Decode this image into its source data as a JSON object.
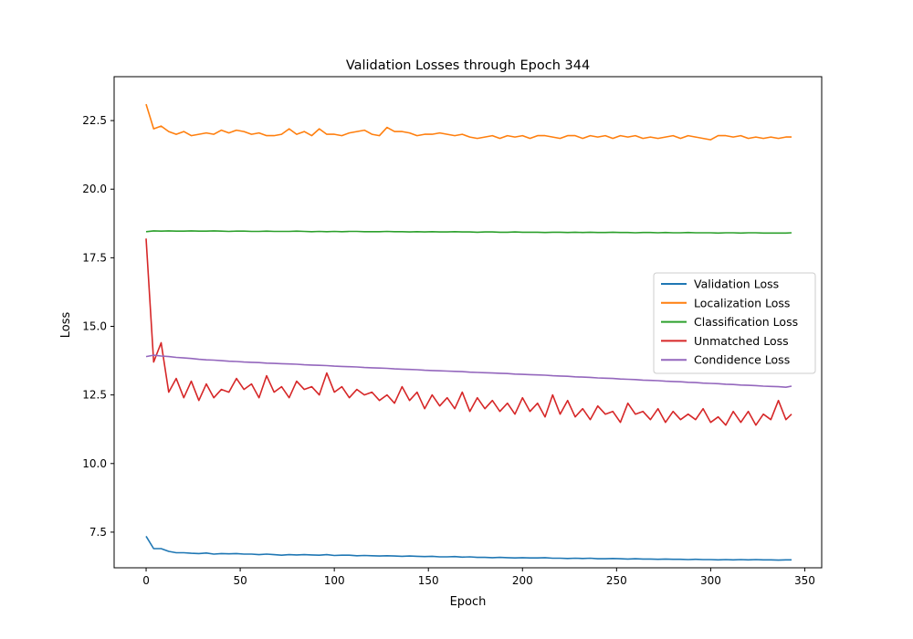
{
  "chart_data": {
    "type": "line",
    "title": "Validation Losses through Epoch 344",
    "xlabel": "Epoch",
    "ylabel": "Loss",
    "xlim": [
      -17,
      359
    ],
    "ylim": [
      6.2,
      24.1
    ],
    "xticks": [
      0,
      50,
      100,
      150,
      200,
      250,
      300,
      350
    ],
    "xtick_labels": [
      "0",
      "50",
      "100",
      "150",
      "200",
      "250",
      "300",
      "350"
    ],
    "yticks": [
      7.5,
      10.0,
      12.5,
      15.0,
      17.5,
      20.0,
      22.5
    ],
    "ytick_labels": [
      "7.5",
      "10.0",
      "12.5",
      "15.0",
      "17.5",
      "20.0",
      "22.5"
    ],
    "grid": false,
    "legend_position": "center-right",
    "x": [
      0,
      4,
      8,
      12,
      16,
      20,
      24,
      28,
      32,
      36,
      40,
      44,
      48,
      52,
      56,
      60,
      64,
      68,
      72,
      76,
      80,
      84,
      88,
      92,
      96,
      100,
      104,
      108,
      112,
      116,
      120,
      124,
      128,
      132,
      136,
      140,
      144,
      148,
      152,
      156,
      160,
      164,
      168,
      172,
      176,
      180,
      184,
      188,
      192,
      196,
      200,
      204,
      208,
      212,
      216,
      220,
      224,
      228,
      232,
      236,
      240,
      244,
      248,
      252,
      256,
      260,
      264,
      268,
      272,
      276,
      280,
      284,
      288,
      292,
      296,
      300,
      304,
      308,
      312,
      316,
      320,
      324,
      328,
      332,
      336,
      340,
      343
    ],
    "series": [
      {
        "name": "Validation Loss",
        "color": "#1f77b4",
        "values": [
          7.35,
          6.9,
          6.9,
          6.8,
          6.75,
          6.75,
          6.73,
          6.72,
          6.74,
          6.7,
          6.72,
          6.71,
          6.72,
          6.7,
          6.7,
          6.68,
          6.7,
          6.68,
          6.66,
          6.68,
          6.67,
          6.68,
          6.67,
          6.66,
          6.68,
          6.65,
          6.66,
          6.66,
          6.64,
          6.65,
          6.64,
          6.63,
          6.64,
          6.63,
          6.62,
          6.63,
          6.62,
          6.61,
          6.62,
          6.6,
          6.6,
          6.61,
          6.59,
          6.6,
          6.58,
          6.58,
          6.57,
          6.58,
          6.57,
          6.56,
          6.57,
          6.56,
          6.56,
          6.57,
          6.55,
          6.55,
          6.54,
          6.55,
          6.54,
          6.55,
          6.53,
          6.53,
          6.54,
          6.53,
          6.52,
          6.53,
          6.52,
          6.52,
          6.51,
          6.52,
          6.51,
          6.51,
          6.5,
          6.51,
          6.5,
          6.5,
          6.49,
          6.5,
          6.49,
          6.5,
          6.49,
          6.5,
          6.49,
          6.49,
          6.48,
          6.49,
          6.49
        ]
      },
      {
        "name": "Localization Loss",
        "color": "#ff7f0e",
        "values": [
          23.1,
          22.2,
          22.3,
          22.1,
          22.0,
          22.1,
          21.95,
          22.0,
          22.05,
          22.0,
          22.15,
          22.05,
          22.15,
          22.1,
          22.0,
          22.05,
          21.95,
          21.95,
          22.0,
          22.2,
          22.0,
          22.1,
          21.95,
          22.2,
          22.0,
          22.0,
          21.95,
          22.05,
          22.1,
          22.15,
          22.0,
          21.95,
          22.25,
          22.1,
          22.1,
          22.05,
          21.95,
          22.0,
          22.0,
          22.05,
          22.0,
          21.95,
          22.0,
          21.9,
          21.85,
          21.9,
          21.95,
          21.85,
          21.95,
          21.9,
          21.95,
          21.85,
          21.95,
          21.95,
          21.9,
          21.85,
          21.95,
          21.95,
          21.85,
          21.95,
          21.9,
          21.95,
          21.85,
          21.95,
          21.9,
          21.95,
          21.85,
          21.9,
          21.85,
          21.9,
          21.95,
          21.85,
          21.95,
          21.9,
          21.85,
          21.8,
          21.95,
          21.95,
          21.9,
          21.95,
          21.85,
          21.9,
          21.85,
          21.9,
          21.85,
          21.9,
          21.9
        ]
      },
      {
        "name": "Classification Loss",
        "color": "#2ca02c",
        "values": [
          18.45,
          18.48,
          18.47,
          18.48,
          18.47,
          18.47,
          18.48,
          18.47,
          18.47,
          18.48,
          18.47,
          18.46,
          18.47,
          18.47,
          18.46,
          18.46,
          18.47,
          18.46,
          18.46,
          18.46,
          18.47,
          18.46,
          18.45,
          18.46,
          18.45,
          18.46,
          18.45,
          18.46,
          18.46,
          18.45,
          18.45,
          18.45,
          18.46,
          18.45,
          18.45,
          18.44,
          18.45,
          18.44,
          18.45,
          18.44,
          18.44,
          18.45,
          18.44,
          18.44,
          18.43,
          18.44,
          18.44,
          18.43,
          18.43,
          18.44,
          18.43,
          18.43,
          18.43,
          18.42,
          18.43,
          18.43,
          18.42,
          18.43,
          18.42,
          18.43,
          18.42,
          18.42,
          18.43,
          18.42,
          18.42,
          18.41,
          18.42,
          18.42,
          18.41,
          18.42,
          18.41,
          18.41,
          18.42,
          18.41,
          18.41,
          18.41,
          18.4,
          18.41,
          18.41,
          18.4,
          18.41,
          18.41,
          18.4,
          18.4,
          18.4,
          18.4,
          18.41
        ]
      },
      {
        "name": "Unmatched Loss",
        "color": "#d62728",
        "values": [
          18.2,
          13.7,
          14.4,
          12.6,
          13.1,
          12.4,
          13.0,
          12.3,
          12.9,
          12.4,
          12.7,
          12.6,
          13.1,
          12.7,
          12.9,
          12.4,
          13.2,
          12.6,
          12.8,
          12.4,
          13.0,
          12.7,
          12.8,
          12.5,
          13.3,
          12.6,
          12.8,
          12.4,
          12.7,
          12.5,
          12.6,
          12.3,
          12.5,
          12.2,
          12.8,
          12.3,
          12.6,
          12.0,
          12.5,
          12.1,
          12.4,
          12.0,
          12.6,
          11.9,
          12.4,
          12.0,
          12.3,
          11.9,
          12.2,
          11.8,
          12.4,
          11.9,
          12.2,
          11.7,
          12.5,
          11.8,
          12.3,
          11.7,
          12.0,
          11.6,
          12.1,
          11.8,
          11.9,
          11.5,
          12.2,
          11.8,
          11.9,
          11.6,
          12.0,
          11.5,
          11.9,
          11.6,
          11.8,
          11.6,
          12.0,
          11.5,
          11.7,
          11.4,
          11.9,
          11.5,
          11.9,
          11.4,
          11.8,
          11.6,
          12.3,
          11.6,
          11.8
        ]
      },
      {
        "name": "Condidence Loss",
        "color": "#9467bd",
        "values": [
          13.9,
          13.95,
          13.92,
          13.9,
          13.87,
          13.85,
          13.83,
          13.8,
          13.78,
          13.77,
          13.75,
          13.73,
          13.72,
          13.7,
          13.69,
          13.68,
          13.66,
          13.65,
          13.64,
          13.63,
          13.62,
          13.6,
          13.59,
          13.58,
          13.57,
          13.55,
          13.54,
          13.53,
          13.52,
          13.5,
          13.49,
          13.48,
          13.47,
          13.45,
          13.44,
          13.43,
          13.42,
          13.4,
          13.39,
          13.38,
          13.37,
          13.36,
          13.35,
          13.33,
          13.32,
          13.31,
          13.3,
          13.29,
          13.28,
          13.26,
          13.25,
          13.24,
          13.23,
          13.22,
          13.2,
          13.19,
          13.18,
          13.16,
          13.15,
          13.14,
          13.12,
          13.11,
          13.1,
          13.08,
          13.07,
          13.06,
          13.04,
          13.03,
          13.02,
          13.0,
          12.99,
          12.98,
          12.96,
          12.95,
          12.93,
          12.92,
          12.91,
          12.89,
          12.88,
          12.86,
          12.85,
          12.84,
          12.82,
          12.81,
          12.8,
          12.78,
          12.82
        ]
      }
    ]
  }
}
